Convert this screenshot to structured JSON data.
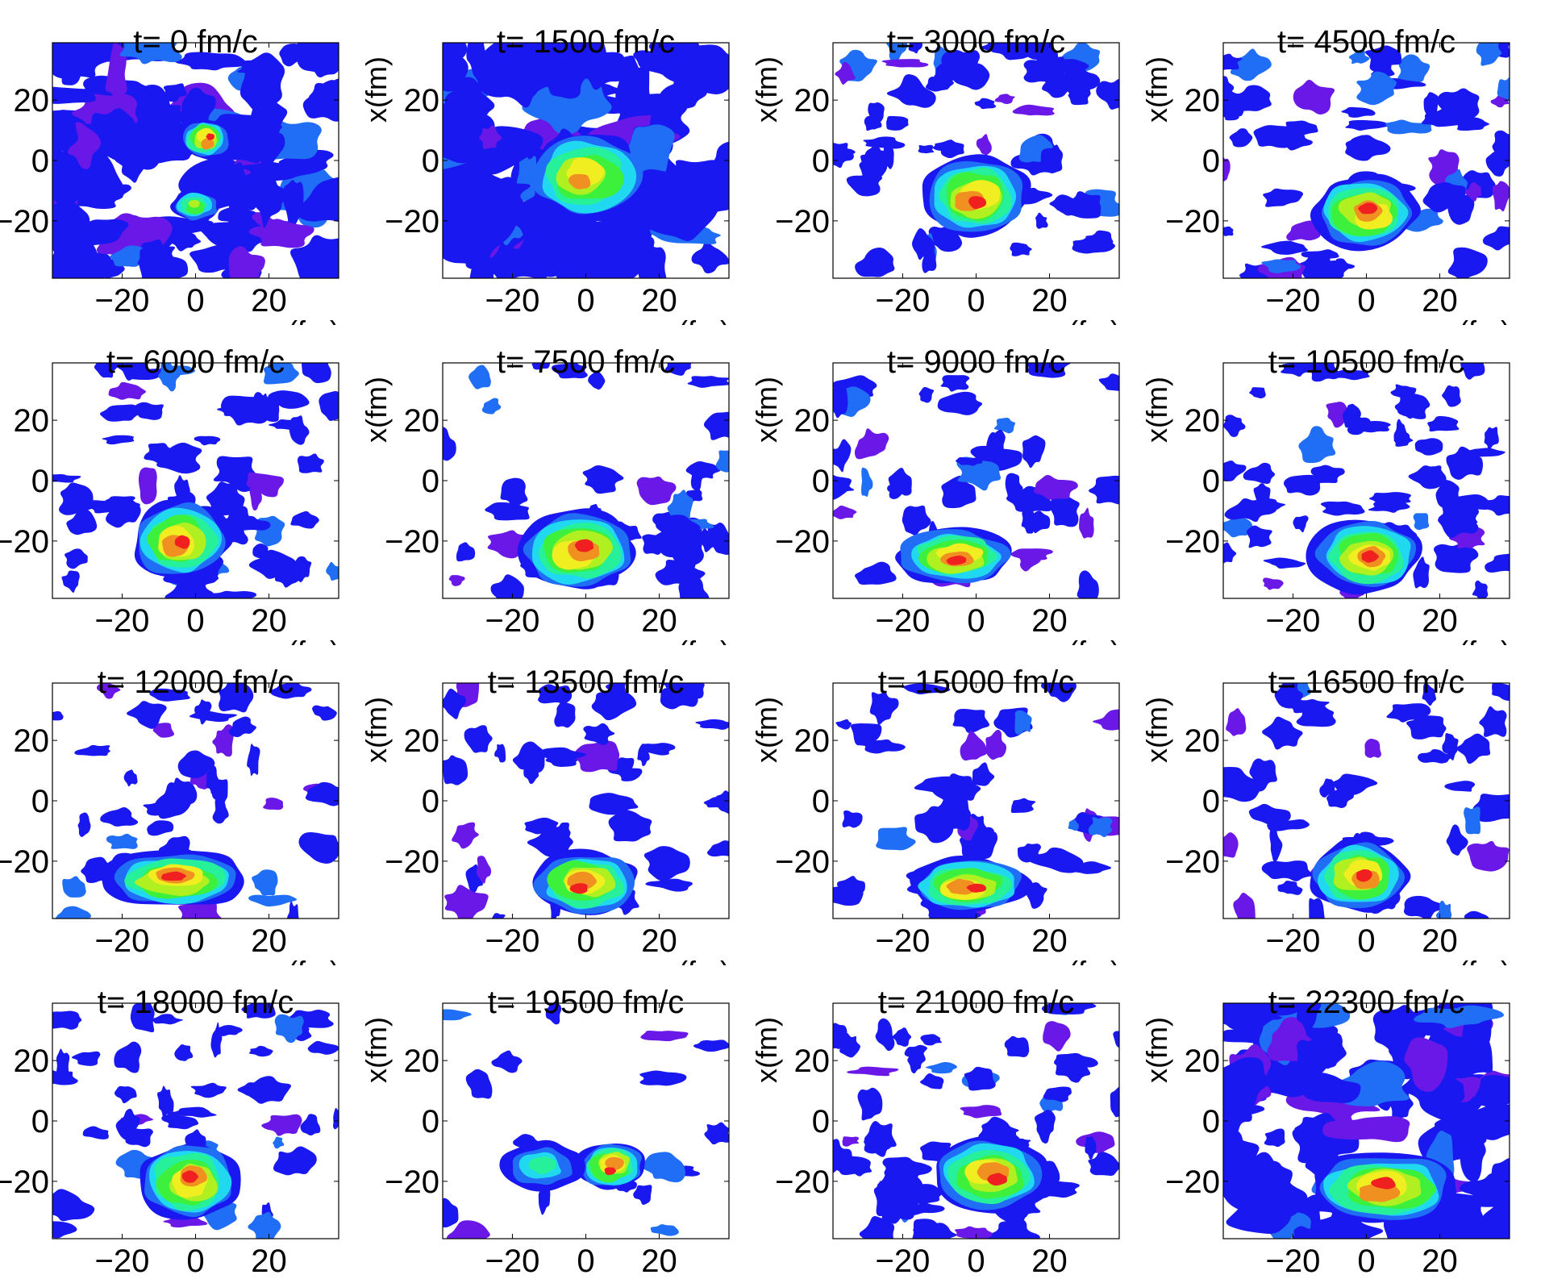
{
  "chart_data": {
    "type": "heatmap",
    "xlabel": "z(fm)",
    "ylabel": "x(fm)",
    "xlim": [
      -39,
      39
    ],
    "ylim": [
      -39,
      39
    ],
    "xticks": [
      "−20",
      "0",
      "20"
    ],
    "yticks": [
      "20",
      "0",
      "−20"
    ],
    "xtick_values": [
      -20,
      0,
      20
    ],
    "ytick_values": [
      20,
      0,
      -20
    ],
    "colormap": [
      "#ffffff",
      "#6a18e8",
      "#1a18f0",
      "#1f6ef5",
      "#20d8f0",
      "#26f09a",
      "#3cf03c",
      "#b0f020",
      "#f0ee20",
      "#f09020",
      "#f02020"
    ],
    "panels": [
      {
        "title": "t= 0 fm/c",
        "background": "dense",
        "blobs": [
          {
            "x": 3,
            "y": 7,
            "peak": 1.0,
            "sx": 5,
            "sy": 5
          },
          {
            "x": 0,
            "y": -15,
            "peak": 0.65,
            "sx": 5,
            "sy": 4
          }
        ]
      },
      {
        "title": "t= 1500 fm/c",
        "background": "dense",
        "blobs": [
          {
            "x": 0,
            "y": -5,
            "peak": 0.85,
            "sx": 12,
            "sy": 11
          }
        ]
      },
      {
        "title": "t= 3000 fm/c",
        "background": "medium",
        "blobs": [
          {
            "x": 0,
            "y": -12,
            "peak": 1.0,
            "sx": 11,
            "sy": 10
          }
        ]
      },
      {
        "title": "t= 4500 fm/c",
        "background": "medium",
        "blobs": [
          {
            "x": 0,
            "y": -17,
            "peak": 1.0,
            "sx": 11,
            "sy": 9
          }
        ]
      },
      {
        "title": "t= 6000 fm/c",
        "background": "medium",
        "blobs": [
          {
            "x": -4,
            "y": -20,
            "peak": 1.0,
            "sx": 10,
            "sy": 10
          }
        ]
      },
      {
        "title": "t= 7500 fm/c",
        "background": "sparse",
        "blobs": [
          {
            "x": -2,
            "y": -23,
            "peak": 0.95,
            "sx": 12,
            "sy": 10
          }
        ]
      },
      {
        "title": "t= 9000 fm/c",
        "background": "sparse",
        "blobs": [
          {
            "x": -6,
            "y": -25,
            "peak": 1.0,
            "sx": 12,
            "sy": 7
          }
        ]
      },
      {
        "title": "t= 10500 fm/c",
        "background": "medium",
        "blobs": [
          {
            "x": 0,
            "y": -25,
            "peak": 1.0,
            "sx": 11,
            "sy": 9
          }
        ]
      },
      {
        "title": "t= 12000 fm/c",
        "background": "sparse",
        "blobs": [
          {
            "x": -5,
            "y": -26,
            "peak": 1.0,
            "sx": 15,
            "sy": 7
          }
        ]
      },
      {
        "title": "t= 13500 fm/c",
        "background": "sparse",
        "blobs": [
          {
            "x": 0,
            "y": -27,
            "peak": 1.0,
            "sx": 11,
            "sy": 8
          }
        ]
      },
      {
        "title": "t= 15000 fm/c",
        "background": "sparse",
        "blobs": [
          {
            "x": -2,
            "y": -28,
            "peak": 0.95,
            "sx": 12,
            "sy": 7
          }
        ]
      },
      {
        "title": "t= 16500 fm/c",
        "background": "sparse",
        "blobs": [
          {
            "x": -2,
            "y": -25,
            "peak": 1.0,
            "sx": 10,
            "sy": 9
          }
        ]
      },
      {
        "title": "t= 18000 fm/c",
        "background": "sparse",
        "blobs": [
          {
            "x": -2,
            "y": -20,
            "peak": 1.0,
            "sx": 10,
            "sy": 10
          }
        ]
      },
      {
        "title": "t= 19500 fm/c",
        "background": "very-sparse",
        "blobs": [
          {
            "x": 7,
            "y": -15,
            "peak": 1.0,
            "sx": 7,
            "sy": 6
          },
          {
            "x": -12,
            "y": -15,
            "peak": 0.45,
            "sx": 8,
            "sy": 6
          }
        ]
      },
      {
        "title": "t= 21000 fm/c",
        "background": "medium",
        "blobs": [
          {
            "x": 4,
            "y": -18,
            "peak": 1.0,
            "sx": 12,
            "sy": 9
          }
        ]
      },
      {
        "title": "t= 22300 fm/c",
        "background": "dense",
        "blobs": [
          {
            "x": 5,
            "y": -22,
            "peak": 0.95,
            "sx": 15,
            "sy": 9
          }
        ]
      }
    ]
  }
}
